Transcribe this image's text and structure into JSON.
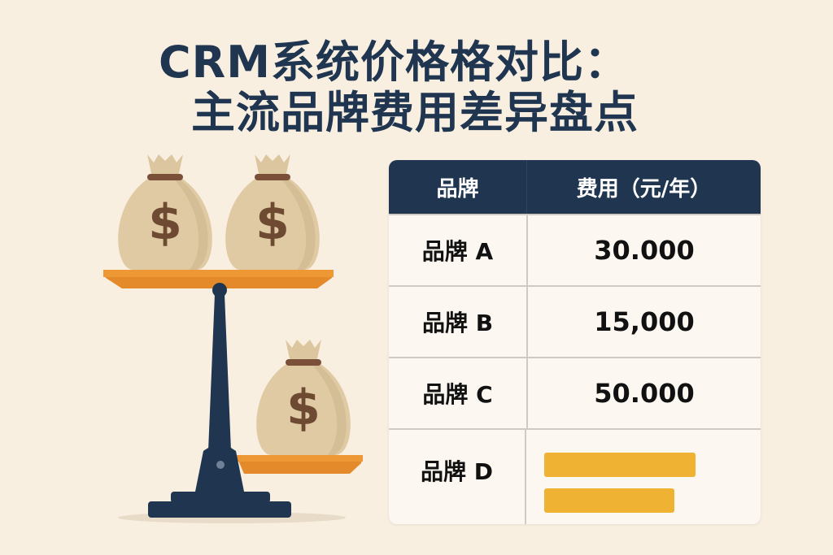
{
  "title": {
    "line1": "CRM系统价格格对比：",
    "line2": "主流品牌费用差异盘点"
  },
  "table": {
    "headers": [
      "品牌",
      "费用（元/年）"
    ],
    "rows": [
      {
        "brand": "品牌 A",
        "cost": "30.000"
      },
      {
        "brand": "品牌 B",
        "cost": "15,000"
      },
      {
        "brand": "品牌 C",
        "cost": "50.000"
      },
      {
        "brand": "品牌 D",
        "cost": null
      }
    ]
  },
  "illustration": {
    "icons": [
      "money-bag-icon",
      "balance-scale-icon"
    ],
    "bag_symbol": "$"
  },
  "colors": {
    "background": "#f8efe1",
    "navy": "#1f3550",
    "orange": "#e58a2a",
    "bag": "#dfcaa4",
    "placeholder_bar": "#f0b232"
  }
}
